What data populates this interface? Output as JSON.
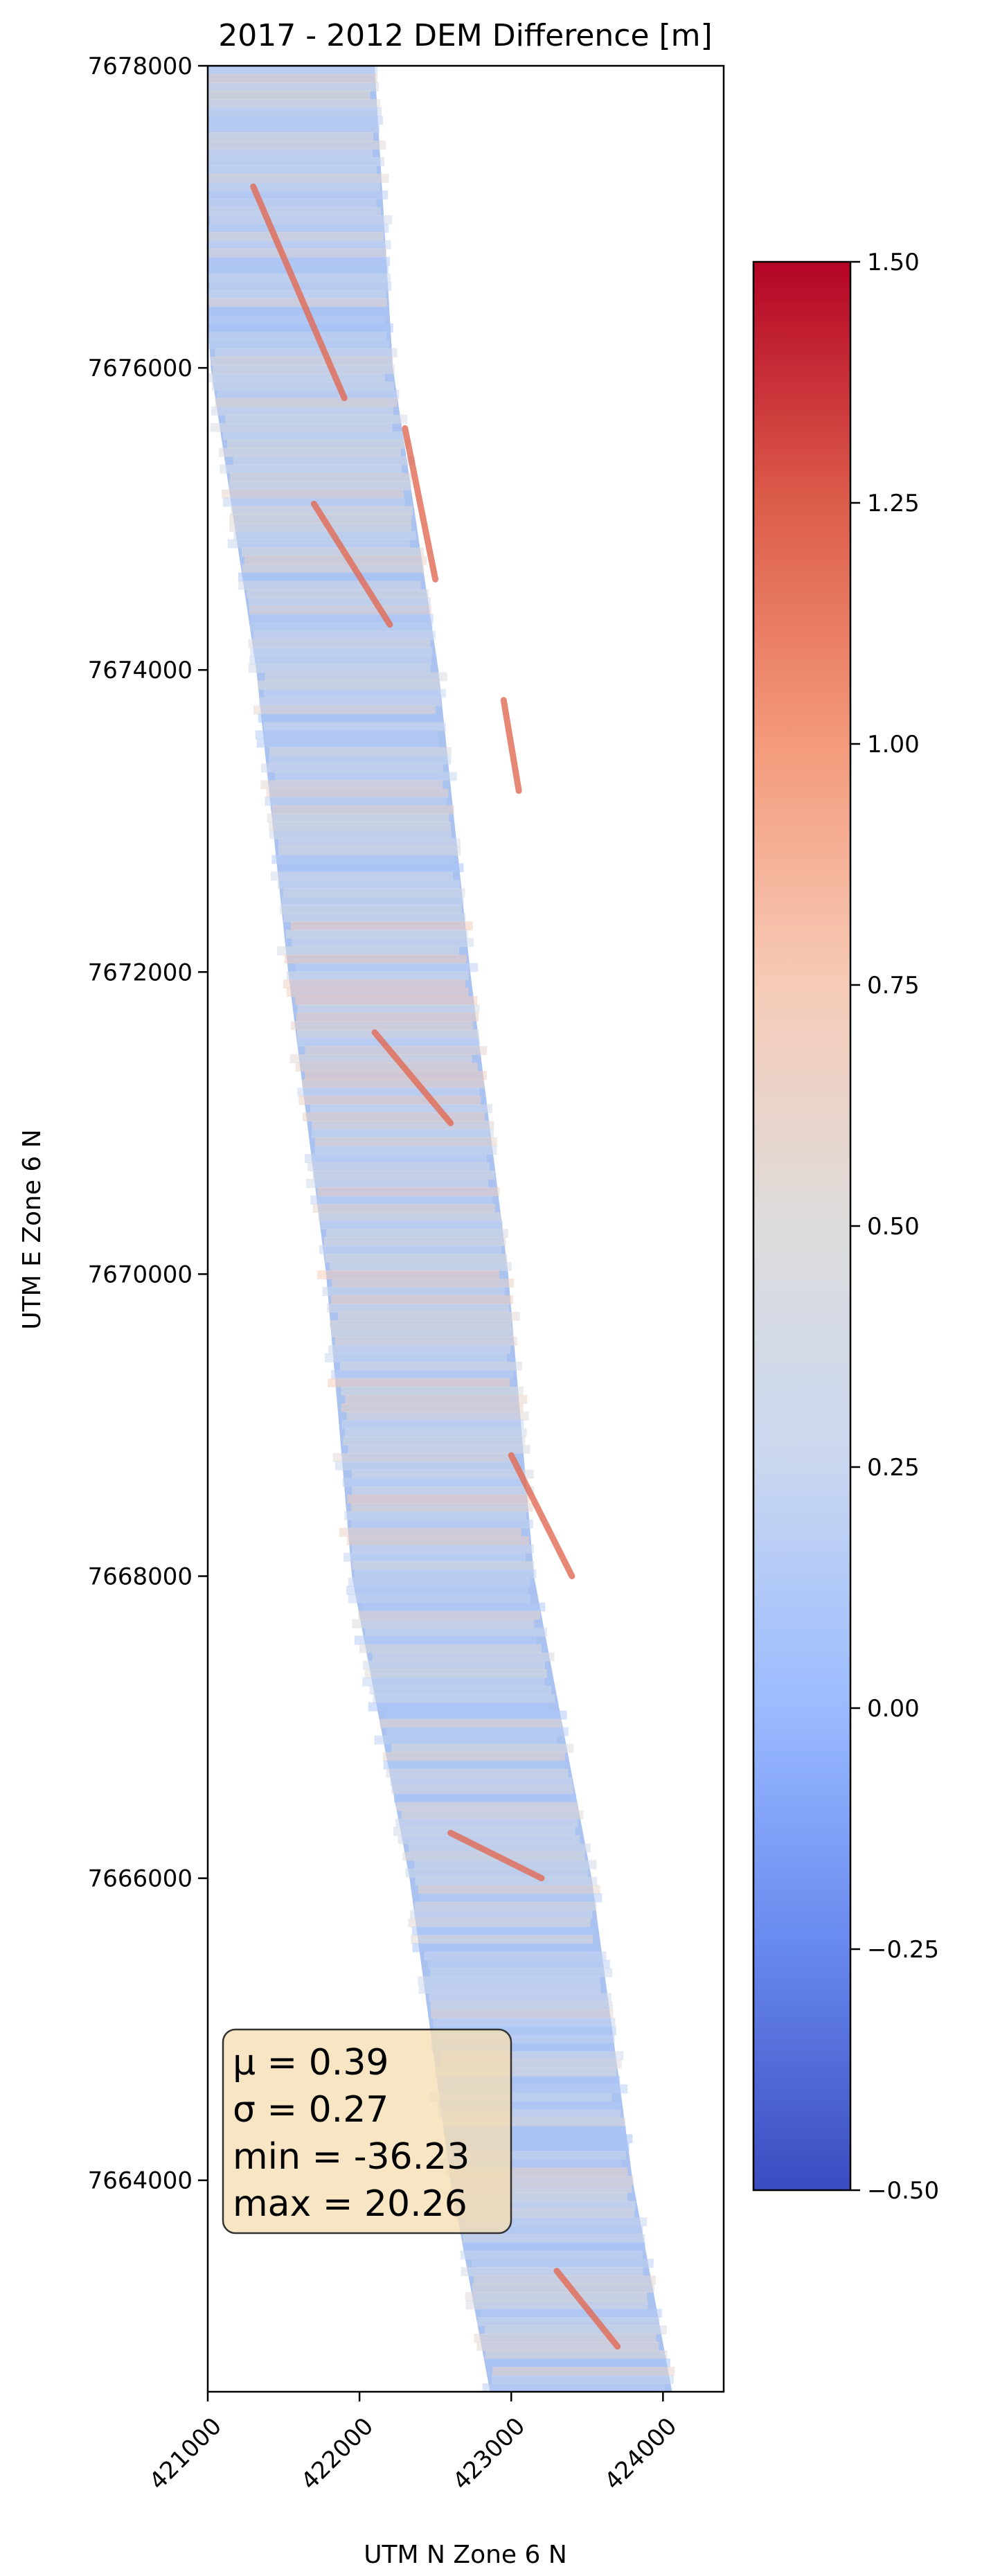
{
  "chart_data": {
    "type": "heatmap",
    "title": "2017 - 2012 DEM Difference [m]",
    "xlabel": "UTM N Zone 6 N",
    "ylabel": "UTM E Zone 6 N",
    "xlim": [
      421000,
      424400
    ],
    "ylim": [
      7662600,
      7678000
    ],
    "xticks": [
      421000,
      422000,
      423000,
      424000
    ],
    "xtick_labels": [
      "421000",
      "422000",
      "423000",
      "424000"
    ],
    "yticks": [
      7664000,
      7666000,
      7668000,
      7670000,
      7672000,
      7674000,
      7676000,
      7678000
    ],
    "ytick_labels": [
      "7664000",
      "7666000",
      "7668000",
      "7670000",
      "7672000",
      "7674000",
      "7676000",
      "7678000"
    ],
    "grid": false,
    "colormap": "coolwarm",
    "colormap_stops": [
      "#3b4cc0",
      "#6788ee",
      "#9abbff",
      "#c9d7f0",
      "#dddcdc",
      "#f6cbb7",
      "#f49a7b",
      "#dc5d4a",
      "#b40426"
    ],
    "colorbar": {
      "range": [
        -0.5,
        1.5
      ],
      "ticks": [
        -0.5,
        -0.25,
        0.0,
        0.25,
        0.5,
        0.75,
        1.0,
        1.25,
        1.5
      ],
      "tick_labels": [
        "−0.50",
        "−0.25",
        "0.00",
        "0.25",
        "0.50",
        "0.75",
        "1.00",
        "1.25",
        "1.50"
      ]
    },
    "strip_centerline": [
      {
        "y": 7678000,
        "x": 421500
      },
      {
        "y": 7676000,
        "x": 421620
      },
      {
        "y": 7674000,
        "x": 421920
      },
      {
        "y": 7672000,
        "x": 422130
      },
      {
        "y": 7670000,
        "x": 422380
      },
      {
        "y": 7668000,
        "x": 422550
      },
      {
        "y": 7666000,
        "x": 422930
      },
      {
        "y": 7664000,
        "x": 423200
      },
      {
        "y": 7662600,
        "x": 423460
      }
    ],
    "stats_box": {
      "mu": "μ = 0.39",
      "sigma": "σ = 0.27",
      "min": "min = -36.23",
      "max": "max = 20.26",
      "location": "lower-left"
    }
  }
}
